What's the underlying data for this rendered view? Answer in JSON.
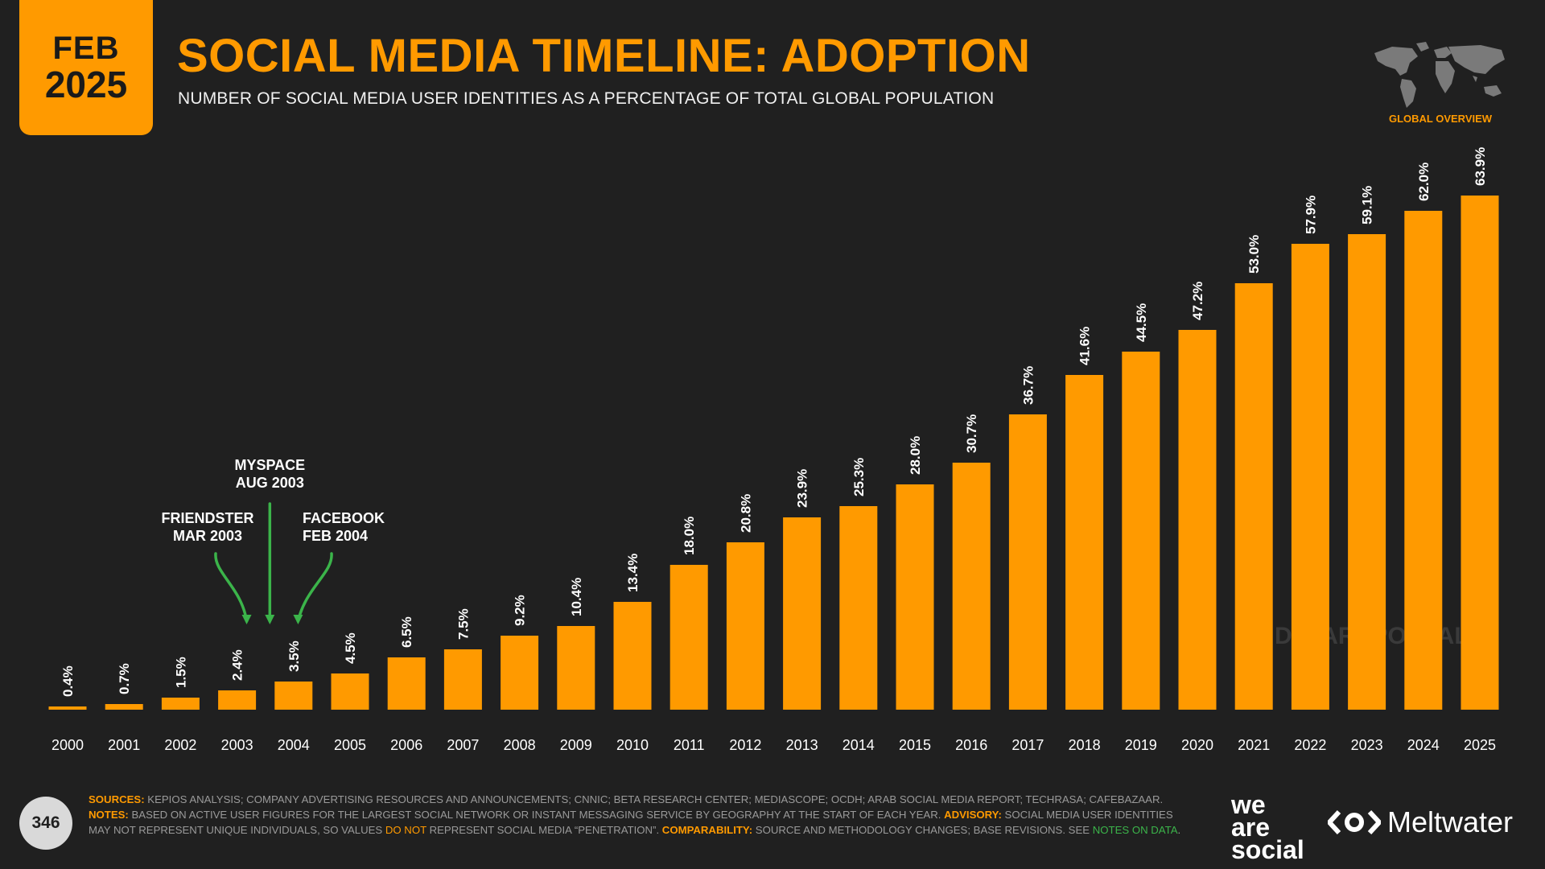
{
  "header": {
    "badge_month": "FEB",
    "badge_year": "2025",
    "title": "SOCIAL MEDIA TIMELINE: ADOPTION",
    "subtitle": "NUMBER OF SOCIAL MEDIA USER IDENTITIES AS A PERCENTAGE OF TOTAL GLOBAL POPULATION",
    "region_label": "GLOBAL OVERVIEW"
  },
  "watermark": "DATAREPORTAL",
  "colors": {
    "accent": "#ff9a00",
    "background": "#202020",
    "arrow": "#3bb44a"
  },
  "chart_data": {
    "type": "bar",
    "categories": [
      "2000",
      "2001",
      "2002",
      "2003",
      "2004",
      "2005",
      "2006",
      "2007",
      "2008",
      "2009",
      "2010",
      "2011",
      "2012",
      "2013",
      "2014",
      "2015",
      "2016",
      "2017",
      "2018",
      "2019",
      "2020",
      "2021",
      "2022",
      "2023",
      "2024",
      "2025"
    ],
    "values": [
      0.4,
      0.7,
      1.5,
      2.4,
      3.5,
      4.5,
      6.5,
      7.5,
      9.2,
      10.4,
      13.4,
      18.0,
      20.8,
      23.9,
      25.3,
      28.0,
      30.7,
      36.7,
      41.6,
      44.5,
      47.2,
      53.0,
      57.9,
      59.1,
      62.0,
      63.9
    ],
    "data_labels": [
      "0.4%",
      "0.7%",
      "1.5%",
      "2.4%",
      "3.5%",
      "4.5%",
      "6.5%",
      "7.5%",
      "9.2%",
      "10.4%",
      "13.4%",
      "18.0%",
      "20.8%",
      "23.9%",
      "25.3%",
      "28.0%",
      "30.7%",
      "36.7%",
      "41.6%",
      "44.5%",
      "47.2%",
      "53.0%",
      "57.9%",
      "59.1%",
      "62.0%",
      "63.9%"
    ],
    "unit": "%",
    "ylim": [
      0,
      70
    ],
    "grid": false,
    "annotations": [
      {
        "line1": "FRIENDSTER",
        "line2": "MAR 2003",
        "date": 2003.17
      },
      {
        "line1": "MYSPACE",
        "line2": "AUG 2003",
        "date": 2003.58
      },
      {
        "line1": "FACEBOOK",
        "line2": "FEB 2004",
        "date": 2004.08
      }
    ]
  },
  "footer": {
    "page_number": "346",
    "sources_label": "SOURCES:",
    "sources_text": "KEPIOS ANALYSIS; COMPANY ADVERTISING RESOURCES AND ANNOUNCEMENTS; CNNIC; BETA RESEARCH CENTER; MEDIASCOPE; OCDH; ARAB SOCIAL MEDIA REPORT; TECHRASA; CAFEBAZAAR.",
    "notes_label": "NOTES:",
    "notes_text": "BASED ON ACTIVE USER FIGURES FOR THE LARGEST SOCIAL NETWORK OR INSTANT MESSAGING SERVICE BY GEOGRAPHY AT THE START OF EACH YEAR.",
    "advisory_label": "ADVISORY:",
    "advisory_text_1": "SOCIAL MEDIA USER IDENTITIES MAY NOT REPRESENT UNIQUE INDIVIDUALS, SO VALUES",
    "advisory_highlight": "DO NOT",
    "advisory_text_2": "REPRESENT SOCIAL MEDIA “PENETRATION”.",
    "comparability_label": "COMPARABILITY:",
    "comparability_text": "SOURCE AND METHODOLOGY CHANGES; BASE REVISIONS. SEE",
    "notes_link": "NOTES ON DATA",
    "notes_link_end": "."
  },
  "brands": {
    "we_are_social": [
      "we",
      "are",
      "social"
    ],
    "meltwater": "Meltwater"
  }
}
